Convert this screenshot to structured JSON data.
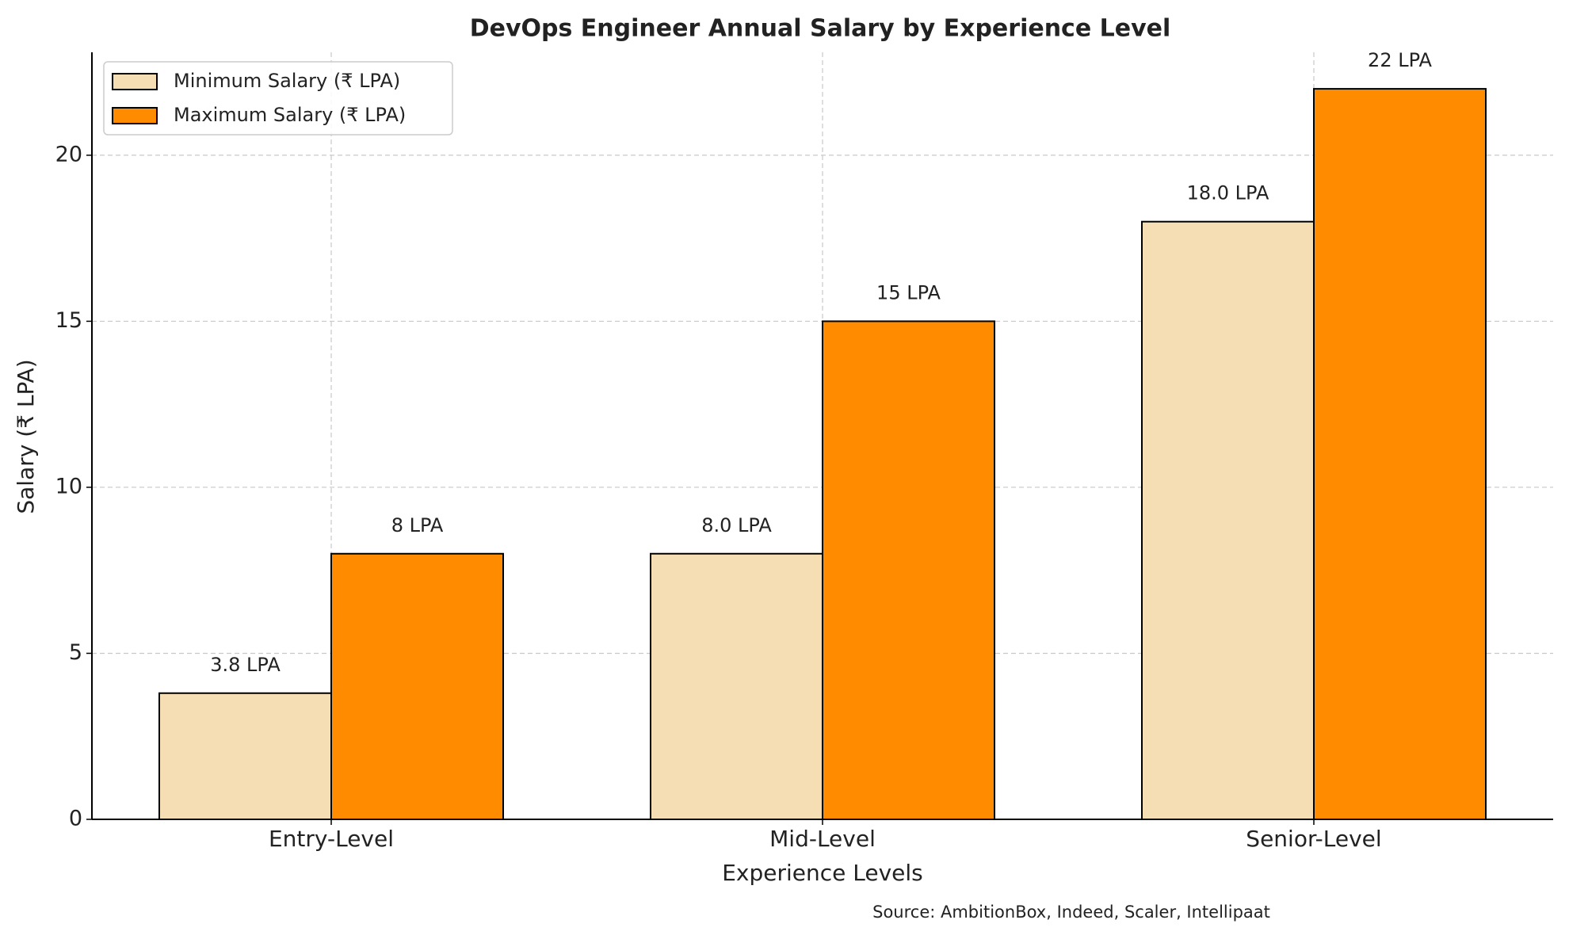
{
  "chart_data": {
    "type": "bar",
    "title": "DevOps Engineer Annual Salary by Experience Level",
    "x_label": "Experience Levels",
    "y_label": "Salary (₹ LPA)",
    "source": "Source: AmbitionBox, Indeed, Scaler, Intellipaat",
    "categories": [
      "Entry-Level",
      "Mid-Level",
      "Senior-Level"
    ],
    "series": [
      {
        "name": "Minimum Salary (₹ LPA)",
        "color": "#f5deb3",
        "values": [
          3.8,
          8,
          18
        ],
        "value_labels": [
          "3.8 LPA",
          "8.0 LPA",
          "18.0 LPA"
        ]
      },
      {
        "name": "Maximum Salary (₹ LPA)",
        "color": "#ff8c00",
        "values": [
          8,
          15,
          22
        ],
        "value_labels": [
          "8 LPA",
          "15 LPA",
          "22 LPA"
        ]
      }
    ],
    "ylim": [
      0,
      23.1
    ],
    "yticks": [
      0,
      5,
      10,
      15,
      20
    ],
    "grid": true,
    "legend": "upper left"
  }
}
